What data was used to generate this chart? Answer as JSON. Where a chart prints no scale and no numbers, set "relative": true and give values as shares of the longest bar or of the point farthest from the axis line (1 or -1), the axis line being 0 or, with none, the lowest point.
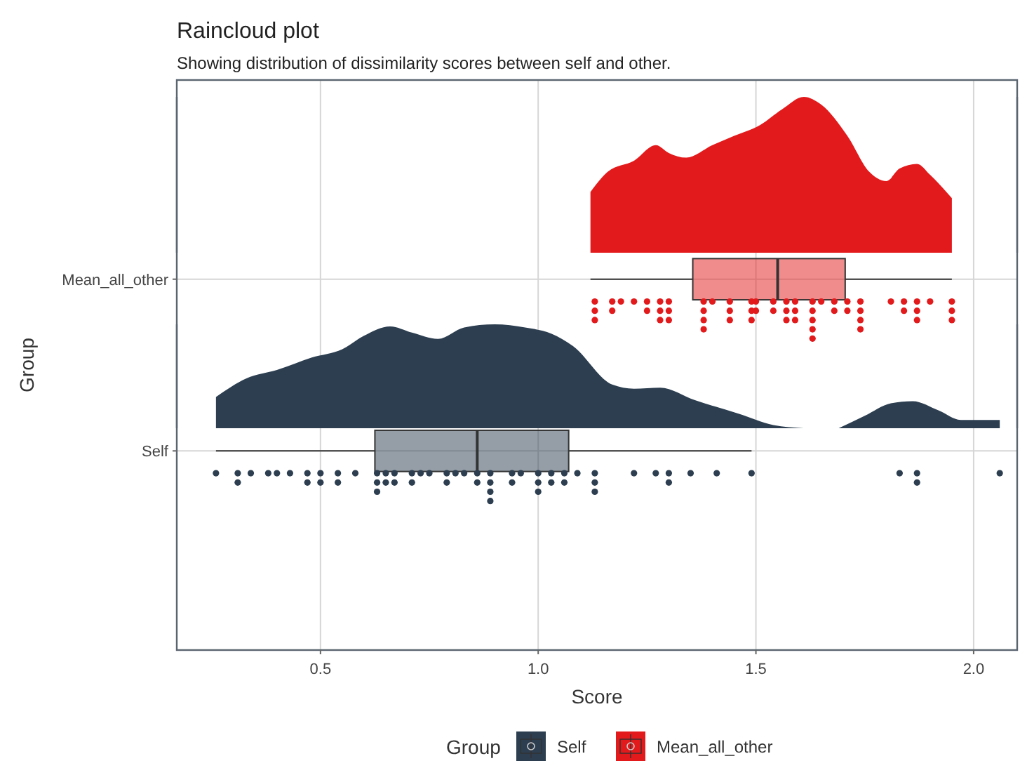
{
  "chart_data": [
    {
      "type": "box",
      "orientation": "horizontal",
      "title": "Raincloud plot",
      "subtitle": "Showing distribution of dissimilarity scores between self and other.",
      "xlabel": "Score",
      "ylabel": "Group",
      "legend_title": "Group",
      "legend": "bottom",
      "grid": true,
      "categories": [
        "Mean_all_other",
        "Self"
      ],
      "xlim": [
        0.17,
        2.1
      ],
      "xticks": [
        0.5,
        {
          "value": 1,
          "label": "1.0"
        },
        1.5,
        {
          "value": 2,
          "label": "2.0"
        }
      ],
      "series": [
        {
          "name": "Self",
          "color": "#2c3e50",
          "type": "box",
          "boxes": [
            null,
            {
              "low": 0.26,
              "q1": 0.625,
              "median": 0.86,
              "q3": 1.07,
              "high": 1.49
            }
          ]
        },
        {
          "name": "Mean_all_other",
          "color": "#e31a1c",
          "type": "box",
          "boxes": [
            {
              "low": 1.12,
              "q1": 1.355,
              "median": 1.55,
              "q3": 1.705,
              "high": 1.95
            },
            null
          ]
        },
        {
          "type": "scatter",
          "color": "#2c3e50",
          "x": [
            "Self",
            "Self",
            "Self",
            "Self",
            "Self",
            "Self",
            "Self",
            "Self",
            "Self",
            "Self",
            "Self",
            "Self",
            "Self",
            "Self",
            "Self",
            "Self",
            "Self",
            "Self",
            "Self",
            "Self",
            "Self",
            "Self",
            "Self",
            "Self",
            "Self",
            "Self",
            "Self",
            "Self",
            "Self",
            "Self",
            "Self",
            "Self",
            "Self",
            "Self",
            "Self",
            "Self",
            "Self",
            "Self",
            "Self",
            "Self",
            "Self",
            "Self",
            "Self",
            "Self",
            "Self",
            "Self",
            "Self",
            "Self",
            "Self",
            "Self",
            "Self",
            "Self",
            "Self",
            "Self",
            "Self",
            "Self",
            "Self",
            "Self",
            "Self",
            "Self"
          ],
          "values": [
            0.26,
            0.31,
            0.31,
            0.34,
            0.38,
            0.4,
            0.43,
            0.47,
            0.47,
            0.5,
            0.5,
            0.54,
            0.54,
            0.58,
            0.63,
            0.63,
            0.63,
            0.65,
            0.65,
            0.67,
            0.67,
            0.71,
            0.71,
            0.73,
            0.75,
            0.79,
            0.79,
            0.81,
            0.83,
            0.86,
            0.86,
            0.89,
            0.89,
            0.89,
            0.89,
            0.94,
            0.94,
            0.96,
            1,
            1,
            1,
            1.03,
            1.03,
            1.06,
            1.06,
            1.09,
            1.13,
            1.13,
            1.13,
            1.22,
            1.27,
            1.3,
            1.3,
            1.35,
            1.41,
            1.49,
            1.83,
            1.87,
            1.87,
            2.06
          ]
        },
        {
          "type": "scatter",
          "color": "#e31a1c",
          "x": [
            "Mean_all_other",
            "Mean_all_other",
            "Mean_all_other",
            "Mean_all_other",
            "Mean_all_other",
            "Mean_all_other",
            "Mean_all_other",
            "Mean_all_other",
            "Mean_all_other",
            "Mean_all_other",
            "Mean_all_other",
            "Mean_all_other",
            "Mean_all_other",
            "Mean_all_other",
            "Mean_all_other",
            "Mean_all_other",
            "Mean_all_other",
            "Mean_all_other",
            "Mean_all_other",
            "Mean_all_other",
            "Mean_all_other",
            "Mean_all_other",
            "Mean_all_other",
            "Mean_all_other",
            "Mean_all_other",
            "Mean_all_other",
            "Mean_all_other",
            "Mean_all_other",
            "Mean_all_other",
            "Mean_all_other",
            "Mean_all_other",
            "Mean_all_other",
            "Mean_all_other",
            "Mean_all_other",
            "Mean_all_other",
            "Mean_all_other",
            "Mean_all_other",
            "Mean_all_other",
            "Mean_all_other",
            "Mean_all_other",
            "Mean_all_other",
            "Mean_all_other",
            "Mean_all_other",
            "Mean_all_other",
            "Mean_all_other",
            "Mean_all_other",
            "Mean_all_other",
            "Mean_all_other",
            "Mean_all_other",
            "Mean_all_other",
            "Mean_all_other",
            "Mean_all_other",
            "Mean_all_other",
            "Mean_all_other",
            "Mean_all_other",
            "Mean_all_other",
            "Mean_all_other",
            "Mean_all_other",
            "Mean_all_other",
            "Mean_all_other"
          ],
          "values": [
            1.13,
            1.13,
            1.13,
            1.17,
            1.17,
            1.19,
            1.22,
            1.25,
            1.25,
            1.28,
            1.28,
            1.28,
            1.3,
            1.3,
            1.3,
            1.38,
            1.38,
            1.38,
            1.38,
            1.4,
            1.44,
            1.44,
            1.44,
            1.49,
            1.49,
            1.49,
            1.5,
            1.5,
            1.54,
            1.54,
            1.57,
            1.57,
            1.57,
            1.59,
            1.59,
            1.59,
            1.63,
            1.63,
            1.63,
            1.63,
            1.63,
            1.65,
            1.68,
            1.68,
            1.71,
            1.71,
            1.74,
            1.74,
            1.74,
            1.74,
            1.81,
            1.84,
            1.84,
            1.87,
            1.87,
            1.87,
            1.9,
            1.95,
            1.95,
            1.95
          ]
        }
      ]
    },
    {
      "type": "area",
      "relative": true,
      "xlim": [
        0.17,
        2.1
      ],
      "series": [
        {
          "color": "#e31a1c",
          "x": [
            1.12,
            1.16,
            1.22,
            1.27,
            1.3,
            1.34,
            1.4,
            1.45,
            1.51,
            1.56,
            1.61,
            1.65,
            1.71,
            1.76,
            1.8,
            1.83,
            1.87,
            1.9,
            1.95
          ],
          "values": [
            0.39,
            0.52,
            0.59,
            0.69,
            0.64,
            0.61,
            0.69,
            0.75,
            0.82,
            0.92,
            1,
            0.95,
            0.75,
            0.52,
            0.46,
            0.54,
            0.57,
            0.5,
            0.35
          ]
        }
      ]
    },
    {
      "type": "area",
      "relative": true,
      "xlim": [
        0.17,
        2.1
      ],
      "series": [
        {
          "color": "#2c3e50",
          "x": [
            0.26,
            0.33,
            0.4,
            0.48,
            0.55,
            0.6,
            0.66,
            0.71,
            0.77,
            0.83,
            0.9,
            0.97,
            1.03,
            1.08,
            1.17,
            1.22,
            1.28,
            1.36,
            1.46,
            1.54,
            1.61,
            1.65,
            1.69,
            1.75,
            1.81,
            1.86,
            1.92,
            1.97,
            2.06
          ],
          "values": [
            0.3,
            0.48,
            0.56,
            0.68,
            0.76,
            0.89,
            0.98,
            0.92,
            0.86,
            0.97,
            1,
            0.97,
            0.91,
            0.79,
            0.42,
            0.38,
            0.39,
            0.27,
            0.14,
            0.03,
            0,
            null,
            0,
            0.12,
            0.24,
            0.26,
            0.17,
            0.08,
            0.08
          ]
        }
      ]
    }
  ]
}
